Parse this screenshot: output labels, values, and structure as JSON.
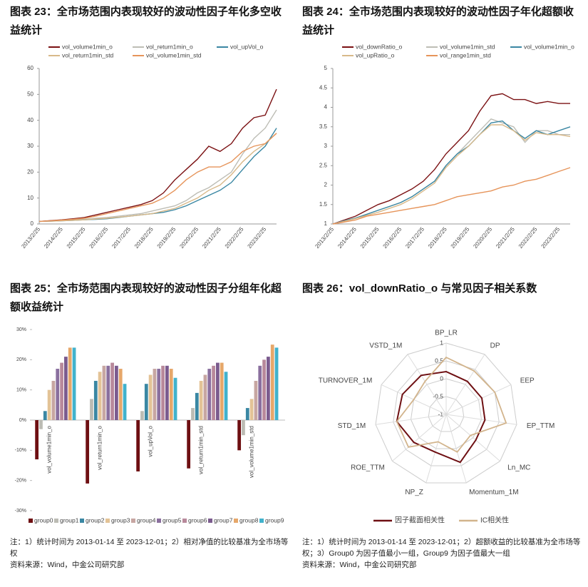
{
  "chart_data": [
    {
      "type": "line",
      "title": "图表 23：全市场范围内表现较好的波动性因子年化多空收益统计",
      "categories": [
        "2013/2/25",
        null,
        "2014/2/25",
        null,
        "2015/2/25",
        null,
        "2016/2/25",
        null,
        "2017/2/25",
        null,
        "2018/2/25",
        null,
        "2019/2/25",
        null,
        "2020/2/25",
        null,
        "2021/2/25",
        null,
        "2022/2/25",
        null,
        "2023/2/25",
        null
      ],
      "ylim": [
        0,
        60
      ],
      "yticks": [
        0,
        10,
        20,
        30,
        40,
        50,
        60
      ],
      "series": [
        {
          "name": "vol_volume1min_o",
          "color": "#7b1113",
          "values": [
            1,
            1.3,
            1.6,
            2,
            2.5,
            3.5,
            4.5,
            5.5,
            6.5,
            7.5,
            9,
            12,
            17,
            21,
            25,
            30,
            28,
            31,
            37,
            41,
            42,
            52
          ]
        },
        {
          "name": "vol_return1min_o",
          "color": "#bdbdb5",
          "values": [
            1,
            1.1,
            1.3,
            1.5,
            1.8,
            2.2,
            2.5,
            3,
            3.5,
            4,
            5,
            6,
            7,
            9,
            12,
            14,
            17,
            20,
            27,
            33,
            37,
            44
          ]
        },
        {
          "name": "vol_upVol_o",
          "color": "#3a87a3",
          "values": [
            1,
            1.1,
            1.2,
            1.4,
            1.6,
            1.8,
            2,
            2.5,
            3,
            3.5,
            4,
            4.5,
            5.5,
            7,
            9,
            11,
            13,
            16,
            21,
            26,
            30,
            37
          ]
        },
        {
          "name": "vol_return1min_std",
          "color": "#d8b98a",
          "values": [
            1,
            1.1,
            1.2,
            1.4,
            1.6,
            1.9,
            2.2,
            2.6,
            3,
            3.5,
            4,
            5,
            6,
            8,
            10,
            13,
            15,
            19,
            24,
            28,
            31,
            35
          ]
        },
        {
          "name": "vol_volume1min_std",
          "color": "#e6945a",
          "values": [
            1,
            1.2,
            1.5,
            1.8,
            2.2,
            3,
            4,
            5,
            6,
            7,
            8,
            10,
            13,
            17,
            20,
            22,
            22,
            24,
            28,
            30,
            31,
            35
          ]
        }
      ]
    },
    {
      "type": "line",
      "title": "图表 24：全市场范围内表现较好的波动性因子年化超额收益统计",
      "categories": [
        "2013/2/25",
        null,
        "2014/2/25",
        null,
        "2015/2/25",
        null,
        "2016/2/25",
        null,
        "2017/2/25",
        null,
        "2018/2/25",
        null,
        "2019/2/25",
        null,
        "2020/2/25",
        null,
        "2021/2/25",
        null,
        "2022/2/25",
        null,
        "2023/2/25",
        null
      ],
      "ylim": [
        1,
        5
      ],
      "yticks": [
        1,
        1.5,
        2,
        2.5,
        3,
        3.5,
        4,
        4.5,
        5
      ],
      "series": [
        {
          "name": "vol_downRatio_o",
          "color": "#7b1113",
          "values": [
            1,
            1.1,
            1.2,
            1.35,
            1.5,
            1.6,
            1.75,
            1.9,
            2.1,
            2.4,
            2.8,
            3.1,
            3.4,
            3.9,
            4.3,
            4.35,
            4.2,
            4.2,
            4.1,
            4.15,
            4.1,
            4.1
          ]
        },
        {
          "name": "vol_volume1min_std",
          "color": "#bdbdb5",
          "values": [
            1,
            1.08,
            1.15,
            1.25,
            1.35,
            1.45,
            1.55,
            1.7,
            1.9,
            2.1,
            2.5,
            2.8,
            3.1,
            3.4,
            3.7,
            3.6,
            3.5,
            3.1,
            3.4,
            3.4,
            3.3,
            3.3
          ]
        },
        {
          "name": "vol_volume1min_o",
          "color": "#3a87a3",
          "values": [
            1,
            1.08,
            1.15,
            1.25,
            1.35,
            1.45,
            1.55,
            1.7,
            1.9,
            2.1,
            2.5,
            2.8,
            3,
            3.3,
            3.6,
            3.65,
            3.4,
            3.2,
            3.4,
            3.3,
            3.4,
            3.5
          ]
        },
        {
          "name": "vol_upRatio_o",
          "color": "#d8b98a",
          "values": [
            1,
            1.07,
            1.14,
            1.22,
            1.3,
            1.4,
            1.5,
            1.65,
            1.85,
            2.05,
            2.45,
            2.75,
            3,
            3.3,
            3.55,
            3.55,
            3.4,
            3.15,
            3.35,
            3.3,
            3.3,
            3.25
          ]
        },
        {
          "name": "vol_range1min_std",
          "color": "#e6945a",
          "values": [
            1,
            1.05,
            1.1,
            1.2,
            1.25,
            1.3,
            1.35,
            1.4,
            1.45,
            1.5,
            1.6,
            1.7,
            1.75,
            1.8,
            1.85,
            1.95,
            2,
            2.1,
            2.15,
            2.25,
            2.35,
            2.45
          ]
        }
      ]
    },
    {
      "type": "grouped-bar",
      "title": "图表 25：全市场范围内表现较好的波动性因子分组年化超额收益统计",
      "categories": [
        "vol_volume1min_o",
        "vol_return1min_o",
        "vol_upVol_o",
        "vol_return1min_std",
        "vol_volume1min_std"
      ],
      "ylim": [
        -30,
        30
      ],
      "yticks": [
        {
          "value": -30,
          "label": "-30%"
        },
        {
          "value": -20,
          "label": "-20%"
        },
        {
          "value": -10,
          "label": "-10%"
        },
        {
          "value": 0,
          "label": "0%"
        },
        {
          "value": 10,
          "label": "10%"
        },
        {
          "value": 20,
          "label": "20%"
        },
        {
          "value": 30,
          "label": "30%"
        }
      ],
      "series": [
        {
          "name": "group0",
          "color": "#6e0f12",
          "values": [
            -13,
            -21,
            -17,
            -16,
            -10
          ]
        },
        {
          "name": "group1",
          "color": "#bcbcb4",
          "values": [
            -3,
            7,
            3,
            4,
            -5
          ]
        },
        {
          "name": "group2",
          "color": "#3a87a3",
          "values": [
            3,
            13,
            12,
            9,
            4
          ]
        },
        {
          "name": "group3",
          "color": "#e3c396",
          "values": [
            10,
            16,
            15,
            13,
            7
          ]
        },
        {
          "name": "group4",
          "color": "#c7a6a2",
          "values": [
            13,
            18,
            17,
            15,
            13
          ]
        },
        {
          "name": "group5",
          "color": "#8a6f9e",
          "values": [
            17,
            18,
            17,
            17,
            18
          ]
        },
        {
          "name": "group6",
          "color": "#b8899b",
          "values": [
            19,
            19,
            18,
            18,
            20
          ]
        },
        {
          "name": "group7",
          "color": "#7b5b8e",
          "values": [
            21,
            18,
            18,
            19,
            21
          ]
        },
        {
          "name": "group8",
          "color": "#e6a76a",
          "values": [
            24,
            17,
            17,
            19,
            25
          ]
        },
        {
          "name": "group9",
          "color": "#41b2cc",
          "values": [
            24,
            12,
            14,
            16,
            24
          ]
        }
      ]
    },
    {
      "type": "radar",
      "title": "图表 26：vol_downRatio_o 与常见因子相关系数",
      "categories": [
        "BP_LR",
        "DP",
        "EEP",
        "EP_TTM",
        "Ln_MC",
        "Momentum_1M",
        "NP_Z",
        "ROE_TTM",
        "STD_1M",
        "TURNOVER_1M",
        "VSTD_1M"
      ],
      "ylim": [
        -1,
        1
      ],
      "yticks": [
        -1,
        -0.5,
        0,
        0.5,
        1
      ],
      "series": [
        {
          "name": "因子截面相关性",
          "color": "#6e0f12",
          "values": [
            0.2,
            0.1,
            0.1,
            0.1,
            0.1,
            0.4,
            0.1,
            0.2,
            0.4,
            0.35,
            0.3
          ]
        },
        {
          "name": "IC相关性",
          "color": "#d2b48c",
          "values": [
            0.6,
            0.45,
            0.5,
            0.7,
            -0.1,
            0.1,
            -0.2,
            0.4,
            0.4,
            0,
            0.1
          ]
        }
      ]
    }
  ],
  "notes": [
    {
      "note": "注：1）统计时间为 2013-01-14 至 2023-12-01；2）相对净值的比较基准为全市场等权",
      "source": "资料来源：Wind，中金公司研究部"
    },
    {
      "note": "注：1）统计时间为 2013-01-14 至 2023-12-01；2）超额收益的比较基准为全市场等权；3）Group0 为因子值最小一组，Group9 为因子值最大一组",
      "source": "资料来源：Wind，中金公司研究部"
    }
  ]
}
